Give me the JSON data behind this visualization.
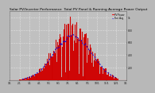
{
  "title": "Solar PV/Inverter Performance  Total PV Panel & Running Average Power Output",
  "bg_color": "#b8b8b8",
  "plot_bg": "#c0c0c0",
  "bar_color": "#cc0000",
  "bar_edge_color": "#dd2222",
  "avg_line_color": "#0000dd",
  "grid_color": "#ffffff",
  "n_points": 140,
  "peak_index": 75,
  "ymax": 1100,
  "title_fontsize": 3.2,
  "tick_fontsize": 2.2,
  "legend_fontsize": 2.0,
  "x_labels": [
    "1/1",
    "2/1",
    "3/1",
    "4/1",
    "5/1",
    "6/1",
    "7/1",
    "8/1",
    "9/1",
    "10/1",
    "11/1",
    "12/1",
    "1/1"
  ],
  "y_labels": [
    "200",
    "400",
    "600",
    "800",
    "1k"
  ],
  "y_values": [
    200,
    400,
    600,
    800,
    1000
  ]
}
